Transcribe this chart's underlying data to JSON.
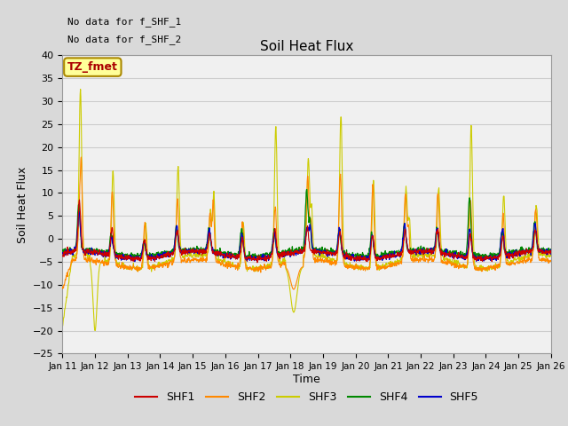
{
  "title": "Soil Heat Flux",
  "ylabel": "Soil Heat Flux",
  "xlabel": "Time",
  "annotation_lines": [
    "No data for f_SHF_1",
    "No data for f_SHF_2"
  ],
  "legend_label": "TZ_fmet",
  "legend_bg": "#ffff99",
  "legend_border": "#aa8800",
  "series_labels": [
    "SHF1",
    "SHF2",
    "SHF3",
    "SHF4",
    "SHF5"
  ],
  "series_colors": [
    "#cc0000",
    "#ff8800",
    "#cccc00",
    "#008800",
    "#0000cc"
  ],
  "ylim": [
    -25,
    40
  ],
  "yticks": [
    -25,
    -20,
    -15,
    -10,
    -5,
    0,
    5,
    10,
    15,
    20,
    25,
    30,
    35,
    40
  ],
  "xtick_labels": [
    "Jan 11",
    "Jan 12",
    "Jan 13",
    "Jan 14",
    "Jan 15",
    "Jan 16",
    "Jan 17",
    "Jan 18",
    "Jan 19",
    "Jan 20",
    "Jan 21",
    "Jan 22",
    "Jan 23",
    "Jan 24",
    "Jan 25",
    "Jan 26"
  ],
  "grid_color": "#cccccc",
  "bg_color": "#d9d9d9",
  "plot_bg": "#f0f0f0",
  "n_points": 1440,
  "seed": 42
}
